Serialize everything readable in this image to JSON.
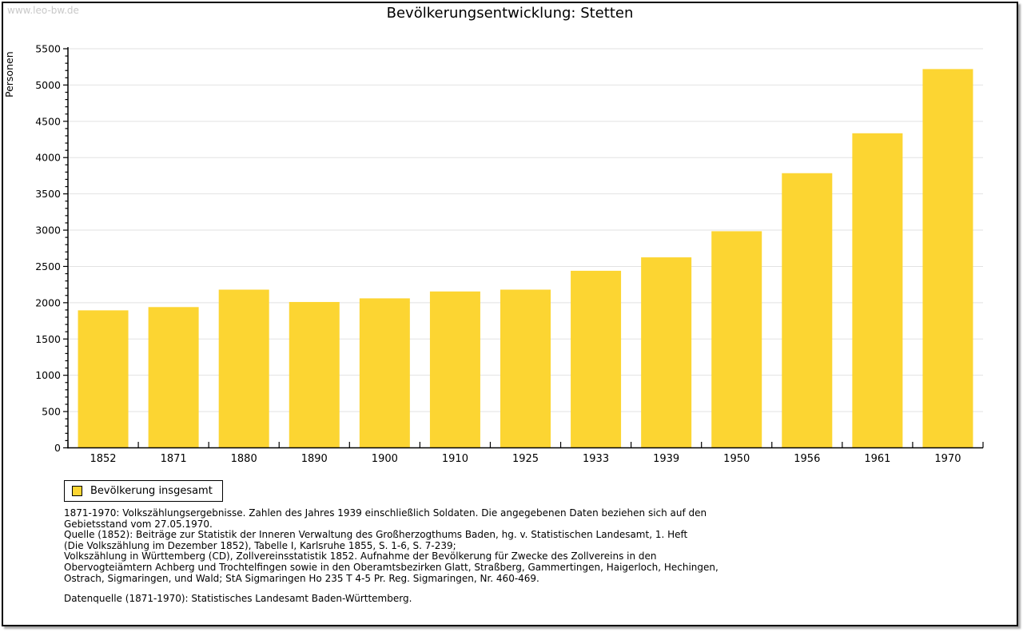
{
  "watermark": "www.leo-bw.de",
  "header": {
    "title": "Bevölkerungsentwicklung: Stetten"
  },
  "legend": {
    "label": "Bevölkerung insgesamt"
  },
  "chart_data": {
    "type": "bar",
    "title": "Bevölkerungsentwicklung: Stetten",
    "xlabel": "",
    "ylabel": "Personen",
    "categories": [
      "1852",
      "1871",
      "1880",
      "1890",
      "1900",
      "1910",
      "1925",
      "1933",
      "1939",
      "1950",
      "1956",
      "1961",
      "1970"
    ],
    "series": [
      {
        "name": "Bevölkerung insgesamt",
        "values": [
          1895,
          1940,
          2180,
          2010,
          2060,
          2155,
          2180,
          2440,
          2625,
          2985,
          3785,
          4335,
          5220
        ]
      }
    ],
    "ylim": [
      0,
      5500
    ],
    "y_major_step": 500,
    "y_minor_step": 100,
    "grid": true,
    "legend_position": "bottom-left"
  },
  "colors": {
    "bar": "#FCD532",
    "grid": "#E2E2E2",
    "axis": "#000000",
    "watermark": "#C9C9C9"
  },
  "notes": {
    "lines": [
      "1871-1970: Volkszählungsergebnisse. Zahlen des Jahres 1939 einschließlich Soldaten. Die angegebenen Daten beziehen sich auf den",
      "Gebietsstand vom 27.05.1970.",
      "Quelle (1852): Beiträge zur Statistik der Inneren Verwaltung des Großherzogthums Baden, hg. v. Statistischen Landesamt, 1. Heft",
      "(Die Volkszählung im Dezember 1852), Tabelle I, Karlsruhe 1855, S. 1-6, S. 7-239;",
      "Volkszählung in Württemberg (CD), Zollvereinsstatistik 1852. Aufnahme der Bevölkerung für Zwecke des Zollvereins in den",
      "Obervogteiämtern Achberg und Trochtelfingen sowie in den Oberamtsbezirken Glatt, Straßberg, Gammertingen, Haigerloch, Hechingen,",
      "Ostrach, Sigmaringen, und Wald; StA Sigmaringen Ho 235 T 4-5 Pr. Reg. Sigmaringen, Nr. 460-469."
    ],
    "datasource": "Datenquelle (1871-1970): Statistisches Landesamt Baden-Württemberg."
  }
}
